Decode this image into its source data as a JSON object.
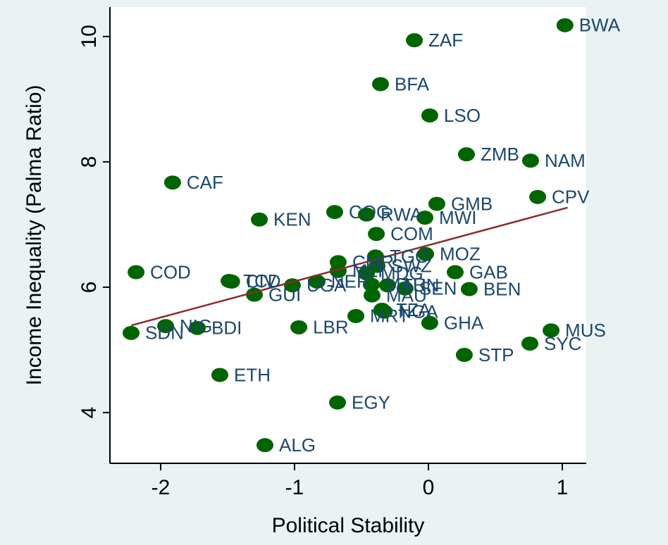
{
  "chart_data": {
    "type": "scatter",
    "x_label": "Political Stability",
    "y_label": "Income Inequality (Palma Ratio)",
    "xlim": [
      -2.379,
      1.179
    ],
    "ylim": [
      3.19,
      10.47
    ],
    "xticks": [
      -2,
      -1,
      0,
      1
    ],
    "yticks": [
      4,
      6,
      8,
      10
    ],
    "color": "#006400",
    "label_color": "#1a476f",
    "labels": [
      "BWA",
      "ZAF",
      "BFA",
      "LSO",
      "ZMB",
      "NAM",
      "CAF",
      "CPV",
      "GMB",
      "KEN",
      "COG",
      "RWA",
      "MWI",
      "COM",
      "TGO",
      "MOZ",
      "CMR",
      "COD",
      "GAB",
      "TCD",
      "CIV",
      "UGA",
      "NER",
      "GUI",
      "MLI",
      "MDG",
      "SWZ",
      "TUN",
      "MAR",
      "SEN",
      "BEN",
      "MAU",
      "MRT",
      "TZA",
      "NGA",
      "GHA",
      "MUS",
      "SYC",
      "LBR",
      "NIG",
      "BDI",
      "SDN",
      "STP",
      "ETH",
      "EGY",
      "ALG"
    ],
    "x": [
      1.02,
      -0.105,
      -0.358,
      0.01,
      0.284,
      0.763,
      -1.911,
      0.816,
      0.063,
      -1.263,
      -0.7,
      -0.463,
      -0.026,
      -0.389,
      -0.395,
      -0.021,
      -0.674,
      -2.184,
      0.2,
      -1.489,
      -1.47,
      -1.016,
      -0.832,
      -1.3,
      -0.674,
      -0.463,
      -0.384,
      -0.305,
      -0.426,
      -0.174,
      0.305,
      -0.421,
      -0.542,
      -0.347,
      -0.33,
      0.01,
      0.916,
      0.758,
      -0.968,
      -1.963,
      -1.726,
      -2.221,
      0.268,
      -1.558,
      -0.679,
      -1.221
    ],
    "y": [
      10.18,
      9.94,
      9.24,
      8.74,
      8.12,
      8.02,
      7.67,
      7.44,
      7.33,
      7.08,
      7.2,
      7.16,
      7.11,
      6.85,
      6.49,
      6.53,
      6.4,
      6.24,
      6.24,
      6.1,
      6.09,
      6.03,
      6.09,
      5.88,
      6.26,
      6.22,
      6.34,
      6.03,
      6.04,
      5.98,
      5.97,
      5.87,
      5.54,
      5.64,
      5.61,
      5.43,
      5.31,
      5.1,
      5.36,
      5.38,
      5.35,
      5.27,
      4.92,
      4.6,
      4.16,
      3.48
    ],
    "fit_line": {
      "color": "#8b2b2b",
      "x": [
        -2.22,
        1.04
      ],
      "y": [
        5.39,
        7.27
      ]
    }
  }
}
